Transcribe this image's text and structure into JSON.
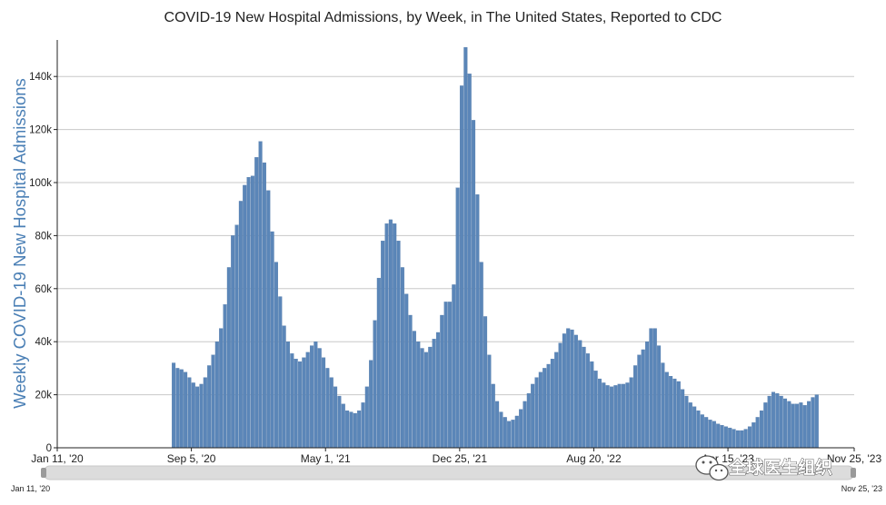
{
  "chart_data": {
    "type": "bar",
    "title": "COVID-19 New Hospital Admissions, by Week, in The United States, Reported to CDC",
    "ylabel": "Weekly COVID-19 New Hospital Admissions",
    "xlabel": "",
    "ylim": [
      0,
      150000
    ],
    "yticks": [
      0,
      20000,
      40000,
      60000,
      80000,
      100000,
      120000,
      140000
    ],
    "ytick_labels": [
      "0",
      "20k",
      "40k",
      "60k",
      "80k",
      "100k",
      "120k",
      "140k"
    ],
    "grid": true,
    "bar_color": "#5b86b8",
    "x_range": [
      "Jan 11, '20",
      "Nov 25, '23"
    ],
    "xtick_labels": [
      "Jan 11, '20",
      "Sep 5, '20",
      "May 1, '21",
      "Dec 25, '21",
      "Aug 20, '22",
      "Apr 15, '23",
      "Nov 25, '23"
    ],
    "range_selector": {
      "start": "Jan 11, '20",
      "end": "Nov 25, '23"
    },
    "first_bar_week": "Aug 1, '20",
    "values": [
      32000,
      30000,
      29500,
      28500,
      26500,
      24500,
      23000,
      24000,
      26500,
      31000,
      35000,
      40000,
      45000,
      54000,
      68000,
      80000,
      84000,
      93000,
      99000,
      102000,
      102500,
      109500,
      115500,
      107500,
      97000,
      81500,
      70000,
      57000,
      46000,
      40000,
      35500,
      33500,
      32500,
      34000,
      36000,
      38500,
      40000,
      37500,
      34000,
      30000,
      26500,
      23000,
      19500,
      16500,
      14000,
      13500,
      13000,
      14000,
      17000,
      23000,
      33000,
      48000,
      64000,
      78000,
      84500,
      86000,
      84500,
      78000,
      68000,
      58000,
      50000,
      44000,
      40000,
      37500,
      36000,
      38000,
      41000,
      43500,
      50000,
      55000,
      55000,
      61500,
      98000,
      136500,
      151000,
      141000,
      123500,
      95500,
      70000,
      49500,
      35000,
      24000,
      17500,
      13500,
      11500,
      10000,
      10500,
      12000,
      14500,
      17500,
      20500,
      24000,
      26500,
      28500,
      30000,
      31500,
      33500,
      36000,
      39500,
      43000,
      45000,
      44500,
      42500,
      40500,
      38000,
      35500,
      32500,
      29000,
      26000,
      24500,
      23500,
      23000,
      23500,
      24000,
      24000,
      24500,
      26500,
      31000,
      35000,
      37000,
      40000,
      45000,
      45000,
      38500,
      32000,
      28500,
      27000,
      26000,
      25000,
      22000,
      19500,
      17000,
      15500,
      14000,
      12500,
      11500,
      10500,
      10000,
      9000,
      8500,
      8000,
      7500,
      7000,
      6500,
      6500,
      7000,
      8000,
      9500,
      11500,
      14000,
      17000,
      19500,
      21000,
      20500,
      19500,
      18500,
      17500,
      16500,
      16500,
      17000,
      16000,
      17500,
      19000,
      20000
    ]
  },
  "watermark": {
    "text": "全球医生组织",
    "icon": "wechat-icon"
  }
}
